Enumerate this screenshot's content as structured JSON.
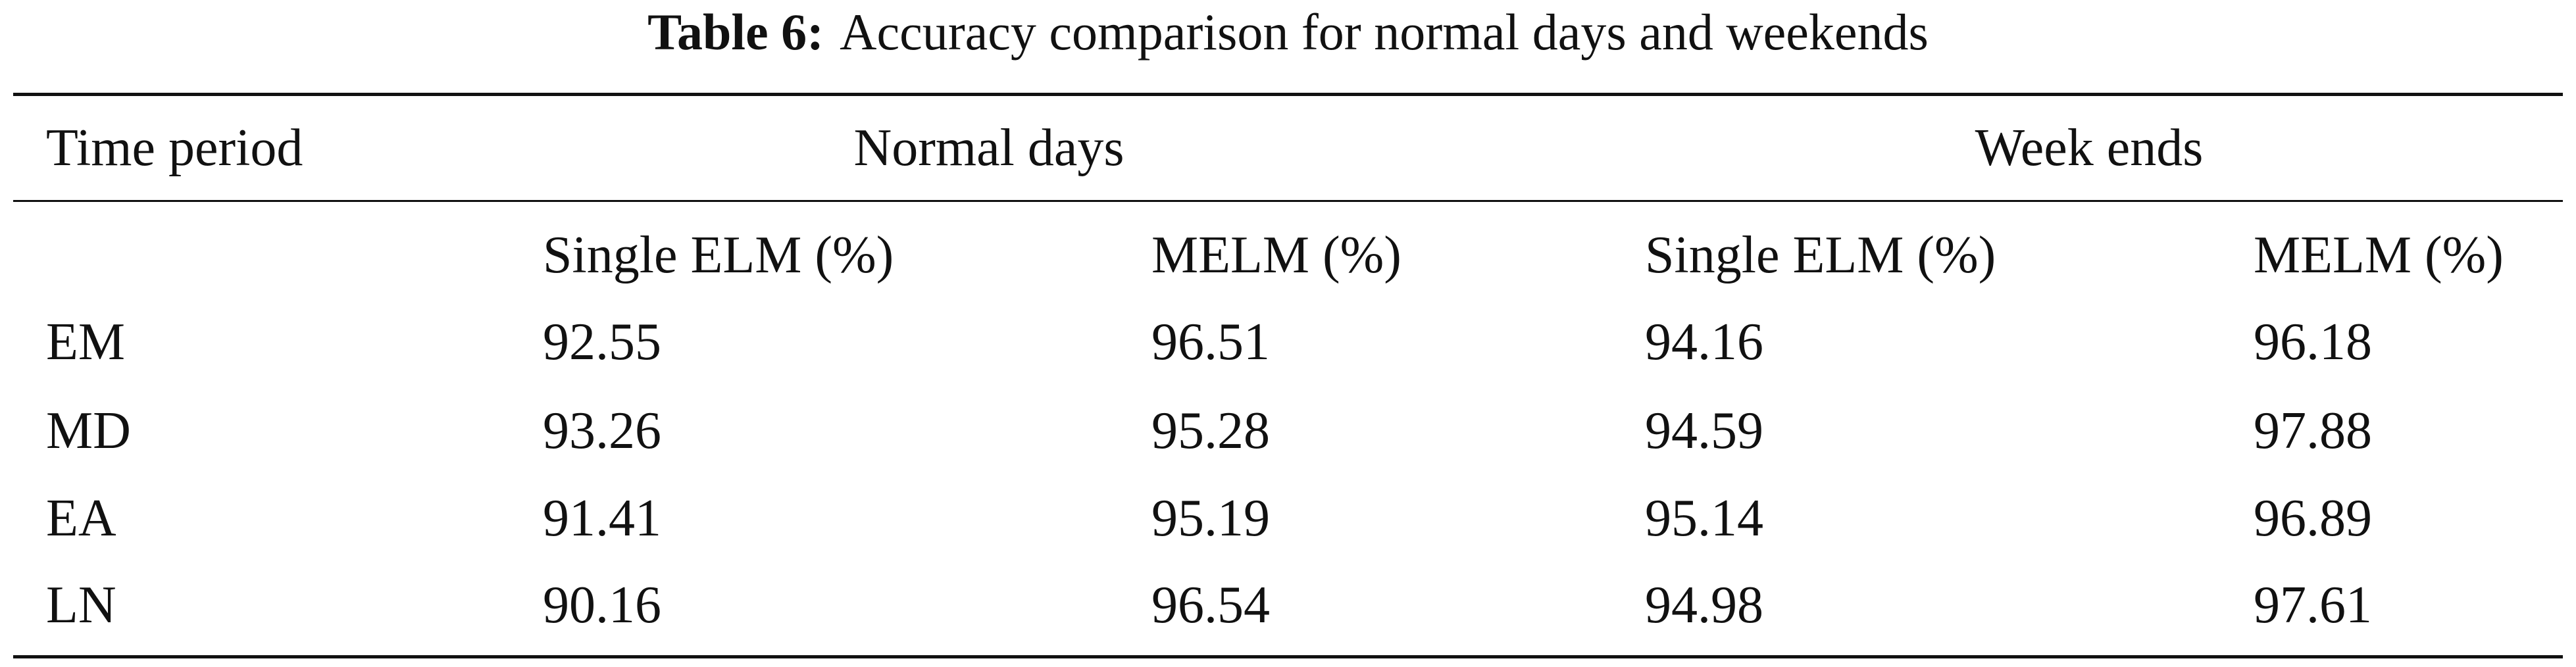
{
  "caption": {
    "label": "Table 6:",
    "text": "Accuracy comparison for normal days and weekends"
  },
  "table": {
    "header": [
      "Time period",
      "Normal days",
      "Week ends"
    ],
    "subheader": [
      "Single ELM (%)",
      "MELM (%)",
      "Single ELM (%)",
      "MELM (%)"
    ],
    "rows": [
      [
        "EM",
        "92.55",
        "96.51",
        "94.16",
        "96.18"
      ],
      [
        "MD",
        "93.26",
        "95.28",
        "94.59",
        "97.88"
      ],
      [
        "EA",
        "91.41",
        "95.19",
        "95.14",
        "96.89"
      ],
      [
        "LN",
        "90.16",
        "96.54",
        "94.98",
        "97.61"
      ]
    ]
  }
}
